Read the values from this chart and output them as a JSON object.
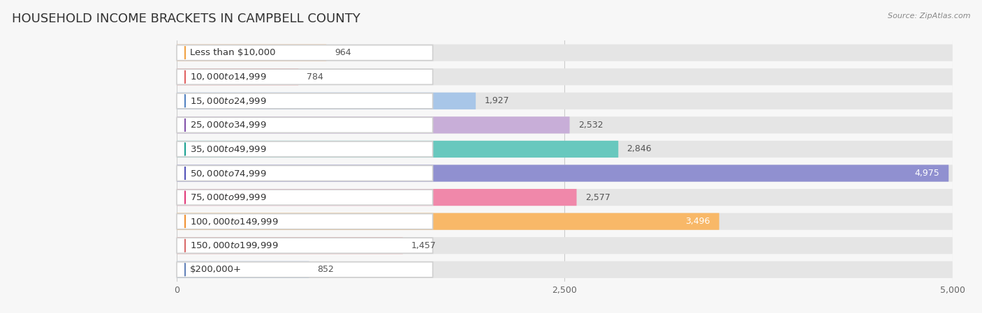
{
  "title": "HOUSEHOLD INCOME BRACKETS IN CAMPBELL COUNTY",
  "source": "Source: ZipAtlas.com",
  "categories": [
    "Less than $10,000",
    "$10,000 to $14,999",
    "$15,000 to $24,999",
    "$25,000 to $34,999",
    "$35,000 to $49,999",
    "$50,000 to $74,999",
    "$75,000 to $99,999",
    "$100,000 to $149,999",
    "$150,000 to $199,999",
    "$200,000+"
  ],
  "values": [
    964,
    784,
    1927,
    2532,
    2846,
    4975,
    2577,
    3496,
    1457,
    852
  ],
  "bar_colors": [
    "#f5c89a",
    "#f2a8a8",
    "#a8c6e8",
    "#c8aed8",
    "#68c8be",
    "#9090d0",
    "#f088aa",
    "#f8b868",
    "#f2a8a8",
    "#a8c6e8"
  ],
  "dot_colors": [
    "#f0a040",
    "#e06060",
    "#5080c0",
    "#8050a8",
    "#18a090",
    "#5050b8",
    "#e03878",
    "#f09030",
    "#d86868",
    "#6080b8"
  ],
  "value_inside": [
    false,
    false,
    false,
    false,
    false,
    true,
    false,
    true,
    false,
    false
  ],
  "xlim": [
    0,
    5000
  ],
  "xticks": [
    0,
    2500,
    5000
  ],
  "bg_color": "#f7f7f7",
  "bar_bg_color": "#e5e5e5",
  "title_fontsize": 13,
  "label_fontsize": 9.5,
  "value_fontsize": 9,
  "source_fontsize": 8
}
